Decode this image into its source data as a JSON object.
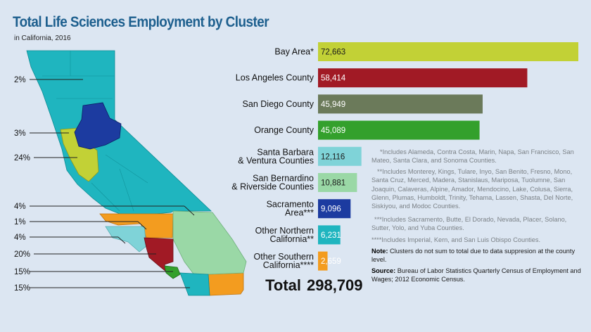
{
  "header": {
    "title": "Total Life Sciences Employment by Cluster",
    "subtitle": "in California, 2016"
  },
  "chart_data": {
    "type": "bar",
    "orientation": "horizontal",
    "title": "Total Life Sciences Employment by Cluster",
    "subtitle": "in California, 2016",
    "categories": [
      "Bay Area*",
      "Los Angeles County",
      "San Diego County",
      "Orange County",
      "Santa Barbara & Ventura Counties",
      "San Bernardino & Riverside Counties",
      "Sacramento Area***",
      "Other Northern California**",
      "Other Southern California****"
    ],
    "label_lines": [
      [
        "Bay Area*"
      ],
      [
        "Los Angeles County"
      ],
      [
        "San Diego County"
      ],
      [
        "Orange County"
      ],
      [
        "Santa Barbara",
        "& Ventura Counties"
      ],
      [
        "San Bernardino",
        "& Riverside Counties"
      ],
      [
        "Sacramento",
        "Area***"
      ],
      [
        "Other Northern",
        "California**"
      ],
      [
        "Other Southern",
        "California****"
      ]
    ],
    "values": [
      72663,
      58414,
      45949,
      45089,
      12116,
      10881,
      9096,
      6231,
      2659
    ],
    "value_labels": [
      "72,663",
      "58,414",
      "45,949",
      "45,089",
      "12,116",
      "10,881",
      "9,096",
      "6,231",
      "2,659"
    ],
    "colors": [
      "#c2d136",
      "#a11a25",
      "#6b7a5a",
      "#33a02c",
      "#7fd3d8",
      "#9ad8a6",
      "#1c3ba0",
      "#1fb5bf",
      "#f39c1f"
    ],
    "xlim": [
      0,
      72663
    ],
    "total_label": "Total",
    "total_value": "298,709"
  },
  "map": {
    "percent_labels": [
      "2%",
      "3%",
      "24%",
      "4%",
      "1%",
      "4%",
      "20%",
      "15%",
      "15%"
    ]
  },
  "notes": {
    "n1": "*Includes Alameda, Contra Costa, Marin, Napa, San Francisco, San Mateo, Santa Clara, and Sonoma Counties.",
    "n2": "**Includes Monterey, Kings, Tulare, Inyo, San Benito, Fresno, Mono, Santa Cruz, Merced, Madera, Stanislaus, Mariposa, Tuolumne, San Joaquin, Calaveras, Alpine, Amador, Mendocino, Lake, Colusa, Sierra, Glenn, Plumas, Humboldt, Trinity, Tehama, Lassen, Shasta, Del Norte, Siskiyou, and Modoc Counties.",
    "n3": "***Includes Sacramento, Butte, El Dorado, Nevada, Placer, Solano, Sutter, Yolo, and Yuba Counties.",
    "n4": "****Includes Imperial, Kern, and San Luis Obispo Counties.",
    "note_label": "Note:",
    "note_text": " Clusters do not sum to total due to data suppresion at the county level.",
    "source_label": "Source:",
    "source_text": " Bureau of Labor Statistics Quarterly Census of Employment and Wages; 2012 Economic Census."
  }
}
